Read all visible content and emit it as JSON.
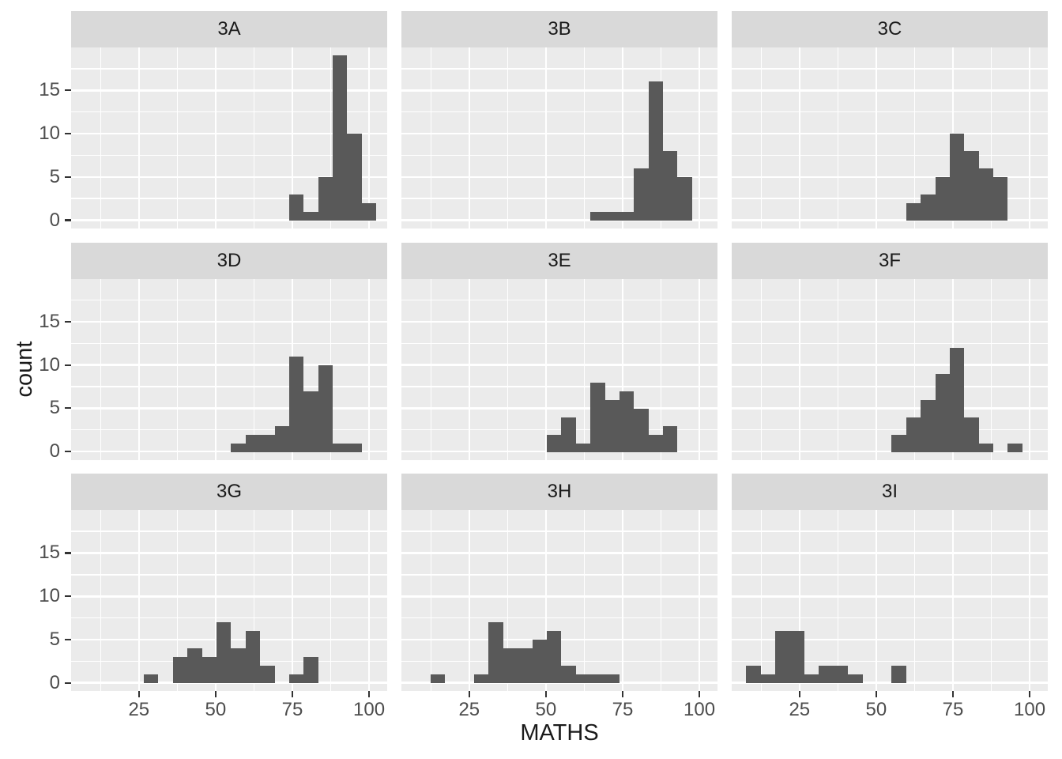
{
  "chart_data": {
    "type": "histogram",
    "faceting": "facet_wrap (3 columns x 3 rows)",
    "xlabel": "MATHS",
    "ylabel": "count",
    "x_ticks": [
      25,
      50,
      75,
      100
    ],
    "x_minor_ticks": [
      12.5,
      37.5,
      62.5,
      87.5
    ],
    "y_ticks": [
      0,
      5,
      10,
      15
    ],
    "y_minor_ticks": [
      2.5,
      7.5,
      12.5,
      17.5
    ],
    "xlim": [
      2.9,
      105.9
    ],
    "ylim": [
      -0.95,
      19.95
    ],
    "bin_width": 4.7368,
    "bin_origin_center": 10,
    "grid": "white major and minor gridlines on gray panel",
    "legend_position": "none",
    "facets": [
      {
        "label": "3A",
        "bins": [
          {
            "x": 76.3,
            "count": 3
          },
          {
            "x": 81.1,
            "count": 1
          },
          {
            "x": 85.8,
            "count": 5
          },
          {
            "x": 90.5,
            "count": 19
          },
          {
            "x": 95.3,
            "count": 10
          },
          {
            "x": 100.0,
            "count": 2
          }
        ]
      },
      {
        "label": "3B",
        "bins": [
          {
            "x": 66.8,
            "count": 1
          },
          {
            "x": 71.6,
            "count": 1
          },
          {
            "x": 76.3,
            "count": 1
          },
          {
            "x": 81.1,
            "count": 6
          },
          {
            "x": 85.8,
            "count": 16
          },
          {
            "x": 90.5,
            "count": 8
          },
          {
            "x": 95.3,
            "count": 5
          }
        ]
      },
      {
        "label": "3C",
        "bins": [
          {
            "x": 62.1,
            "count": 2
          },
          {
            "x": 66.8,
            "count": 3
          },
          {
            "x": 71.6,
            "count": 5
          },
          {
            "x": 76.3,
            "count": 10
          },
          {
            "x": 81.1,
            "count": 8
          },
          {
            "x": 85.8,
            "count": 6
          },
          {
            "x": 90.5,
            "count": 5
          }
        ]
      },
      {
        "label": "3D",
        "bins": [
          {
            "x": 57.4,
            "count": 1
          },
          {
            "x": 62.1,
            "count": 2
          },
          {
            "x": 66.8,
            "count": 2
          },
          {
            "x": 71.6,
            "count": 3
          },
          {
            "x": 76.3,
            "count": 11
          },
          {
            "x": 81.1,
            "count": 7
          },
          {
            "x": 85.8,
            "count": 10
          },
          {
            "x": 90.5,
            "count": 1
          },
          {
            "x": 95.3,
            "count": 1
          }
        ]
      },
      {
        "label": "3E",
        "bins": [
          {
            "x": 52.6,
            "count": 2
          },
          {
            "x": 57.4,
            "count": 4
          },
          {
            "x": 62.1,
            "count": 1
          },
          {
            "x": 66.8,
            "count": 8
          },
          {
            "x": 71.6,
            "count": 6
          },
          {
            "x": 76.3,
            "count": 7
          },
          {
            "x": 81.1,
            "count": 5
          },
          {
            "x": 85.8,
            "count": 2
          },
          {
            "x": 90.5,
            "count": 3
          }
        ]
      },
      {
        "label": "3F",
        "bins": [
          {
            "x": 57.4,
            "count": 2
          },
          {
            "x": 62.1,
            "count": 4
          },
          {
            "x": 66.8,
            "count": 6
          },
          {
            "x": 71.6,
            "count": 9
          },
          {
            "x": 76.3,
            "count": 12
          },
          {
            "x": 81.1,
            "count": 4
          },
          {
            "x": 85.8,
            "count": 1
          },
          {
            "x": 95.3,
            "count": 1
          }
        ]
      },
      {
        "label": "3G",
        "bins": [
          {
            "x": 28.9,
            "count": 1
          },
          {
            "x": 38.4,
            "count": 3
          },
          {
            "x": 43.2,
            "count": 4
          },
          {
            "x": 47.9,
            "count": 3
          },
          {
            "x": 52.6,
            "count": 7
          },
          {
            "x": 57.4,
            "count": 4
          },
          {
            "x": 62.1,
            "count": 6
          },
          {
            "x": 66.8,
            "count": 2
          },
          {
            "x": 76.3,
            "count": 1
          },
          {
            "x": 81.1,
            "count": 3
          }
        ]
      },
      {
        "label": "3H",
        "bins": [
          {
            "x": 14.7,
            "count": 1
          },
          {
            "x": 28.9,
            "count": 1
          },
          {
            "x": 33.7,
            "count": 7
          },
          {
            "x": 38.4,
            "count": 4
          },
          {
            "x": 43.2,
            "count": 4
          },
          {
            "x": 47.9,
            "count": 5
          },
          {
            "x": 52.6,
            "count": 6
          },
          {
            "x": 57.4,
            "count": 2
          },
          {
            "x": 62.1,
            "count": 1
          },
          {
            "x": 66.8,
            "count": 1
          },
          {
            "x": 71.6,
            "count": 1
          }
        ]
      },
      {
        "label": "3I",
        "bins": [
          {
            "x": 10.0,
            "count": 2
          },
          {
            "x": 14.7,
            "count": 1
          },
          {
            "x": 19.5,
            "count": 6
          },
          {
            "x": 24.2,
            "count": 6
          },
          {
            "x": 28.9,
            "count": 1
          },
          {
            "x": 33.7,
            "count": 2
          },
          {
            "x": 38.4,
            "count": 2
          },
          {
            "x": 43.2,
            "count": 1
          },
          {
            "x": 57.4,
            "count": 2
          }
        ]
      }
    ],
    "colors": {
      "panel_bg": "#EBEBEB",
      "strip_bg": "#D9D9D9",
      "bar": "#595959",
      "gridline": "#FFFFFF",
      "axis_text": "#4D4D4D",
      "title_text": "#1A1A1A",
      "tick_mark": "#333333",
      "background": "#FFFFFF"
    }
  }
}
